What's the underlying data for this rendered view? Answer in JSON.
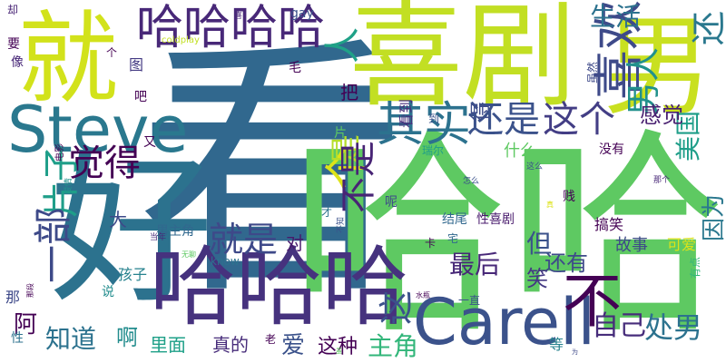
{
  "palette": {
    "purple": "#440154",
    "indigo": "#3b528b",
    "blue": "#31688e",
    "teal": "#21918c",
    "green": "#35b779",
    "lime": "#7ad151",
    "yellow": "#d7e219"
  },
  "words": [
    {
      "text": "看",
      "color": "#31688e"
    },
    {
      "text": "哈哈",
      "color": "#5ec962"
    },
    {
      "text": "喜剧",
      "color": "#c2df23"
    },
    {
      "text": "就",
      "color": "#d2e21b"
    },
    {
      "text": "好",
      "color": "#2c728e"
    },
    {
      "text": "男",
      "color": "#c9e020"
    },
    {
      "text": "哈哈哈",
      "color": "#46327e"
    },
    {
      "text": "哈哈哈哈",
      "color": "#482878"
    },
    {
      "text": "Carell",
      "color": "#3b528b"
    },
    {
      "text": "Steve",
      "color": "#2a788e"
    },
    {
      "text": "喜欢",
      "color": "#3e4a89"
    },
    {
      "text": "其实",
      "color": "#2c728e"
    },
    {
      "text": "还是",
      "color": "#3b528b"
    },
    {
      "text": "这个",
      "color": "#433e85"
    },
    {
      "text": "男人",
      "color": "#21918c"
    },
    {
      "text": "还",
      "color": "#2a788e"
    },
    {
      "text": "人",
      "color": "#1fa187"
    },
    {
      "text": "觉得",
      "color": "#440154"
    },
    {
      "text": "片子",
      "color": "#1f9e89"
    },
    {
      "text": "一部",
      "color": "#3e4a89"
    },
    {
      "text": "个",
      "color": "#dde318"
    },
    {
      "text": "是",
      "color": "#b5de2b"
    },
    {
      "text": "不是",
      "color": "#482475"
    },
    {
      "text": "就是",
      "color": "#3e4989"
    },
    {
      "text": "不",
      "color": "#440154"
    },
    {
      "text": "这",
      "color": "#3b528b"
    },
    {
      "text": "自己",
      "color": "#472d7b"
    },
    {
      "text": "处男",
      "color": "#2c728e"
    },
    {
      "text": "生活",
      "color": "#2c728e"
    },
    {
      "text": "美国",
      "color": "#1f9e89"
    },
    {
      "text": "感觉",
      "color": "#481f70"
    },
    {
      "text": "因为",
      "color": "#2a788e"
    },
    {
      "text": "最后",
      "color": "#482878"
    },
    {
      "text": "还有",
      "color": "#3e4a89"
    },
    {
      "text": "但",
      "color": "#3b528b"
    },
    {
      "text": "笑",
      "color": "#443983"
    },
    {
      "text": "知道",
      "color": "#2c728e"
    },
    {
      "text": "阿",
      "color": "#440154"
    },
    {
      "text": "啊",
      "color": "#228c8d"
    },
    {
      "text": "爱",
      "color": "#3b528b"
    },
    {
      "text": "这种",
      "color": "#440154"
    },
    {
      "text": "主角",
      "color": "#32b67a"
    },
    {
      "text": "真的",
      "color": "#472c7a"
    },
    {
      "text": "里面",
      "color": "#1fa088"
    },
    {
      "text": "对",
      "color": "#481a6c"
    },
    {
      "text": "大",
      "color": "#3e4989"
    },
    {
      "text": "把",
      "color": "#440154"
    },
    {
      "text": "得",
      "color": "#3e4c8a"
    },
    {
      "text": "看到",
      "color": "#472d7b"
    },
    {
      "text": "什么",
      "color": "#5ec962"
    },
    {
      "text": "故事",
      "color": "#3e4989"
    },
    {
      "text": "可爱",
      "color": "#dde318"
    },
    {
      "text": "性喜剧",
      "color": "#481a6c"
    },
    {
      "text": "结尾",
      "color": "#31688e"
    },
    {
      "text": "搞笑",
      "color": "#440154"
    },
    {
      "text": "gay",
      "color": "#3b528b"
    },
    {
      "text": "男主角",
      "color": "#31688e"
    },
    {
      "text": "孩子",
      "color": "#26828e"
    },
    {
      "text": "know",
      "color": "#2c728e"
    },
    {
      "text": "图",
      "color": "#443a83"
    },
    {
      "text": "没有",
      "color": "#440154"
    },
    {
      "text": "等",
      "color": "#26828e"
    },
    {
      "text": "一直",
      "color": "#3b528b"
    },
    {
      "text": "瑞尔",
      "color": "#1f9e89"
    },
    {
      "text": "毛",
      "color": "#440154"
    },
    {
      "text": "像",
      "color": "#482878"
    },
    {
      "text": "要",
      "color": "#440154"
    },
    {
      "text": "却",
      "color": "#482475"
    },
    {
      "text": "吧",
      "color": "#440154"
    },
    {
      "text": "又",
      "color": "#440154"
    },
    {
      "text": "到",
      "color": "#3b528b"
    },
    {
      "text": "说",
      "color": "#228c8d"
    },
    {
      "text": "那",
      "color": "#3e4989"
    },
    {
      "text": "性",
      "color": "#2c728e"
    },
    {
      "text": "老",
      "color": "#440154"
    },
    {
      "text": "贱",
      "color": "#440154"
    },
    {
      "text": "呢",
      "color": "#3e4989"
    },
    {
      "text": "片",
      "color": "#5ec962"
    },
    {
      "text": "虽然",
      "color": "#3e4989"
    },
    {
      "text": "个",
      "color": "#440154"
    },
    {
      "text": "有点",
      "color": "#35b779"
    },
    {
      "text": "才",
      "color": "#2c728e"
    },
    {
      "text": "卡",
      "color": "#440154"
    },
    {
      "text": "宅",
      "color": "#31688e"
    },
    {
      "text": "coldplay",
      "color": "#c2df23"
    },
    {
      "text": "这么",
      "color": "#3b528b"
    },
    {
      "text": "怎么",
      "color": "#3b528b"
    },
    {
      "text": "那个",
      "color": "#482878"
    },
    {
      "text": "电影",
      "color": "#440154"
    },
    {
      "text": "爱情",
      "color": "#21918c"
    },
    {
      "text": "当年",
      "color": "#482878"
    },
    {
      "text": "无聊",
      "color": "#5ec962"
    },
    {
      "text": "那段",
      "color": "#440154"
    },
    {
      "text": "不知",
      "color": "#3b528b"
    },
    {
      "text": "水瓶",
      "color": "#440154"
    },
    {
      "text": "喜",
      "color": "#482878"
    },
    {
      "text": "真",
      "color": "#dde318"
    },
    {
      "text": "为",
      "color": "#3e4989"
    },
    {
      "text": "虽",
      "color": "#5ec962"
    }
  ]
}
